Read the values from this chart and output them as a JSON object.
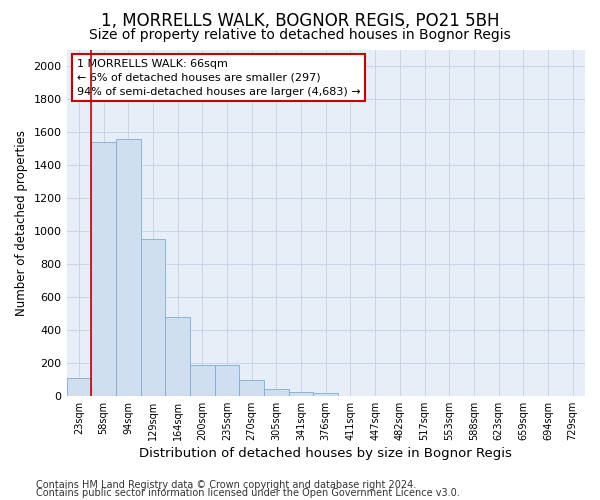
{
  "title_line1": "1, MORRELLS WALK, BOGNOR REGIS, PO21 5BH",
  "title_line2": "Size of property relative to detached houses in Bognor Regis",
  "xlabel": "Distribution of detached houses by size in Bognor Regis",
  "ylabel": "Number of detached properties",
  "footnote1": "Contains HM Land Registry data © Crown copyright and database right 2024.",
  "footnote2": "Contains public sector information licensed under the Open Government Licence v3.0.",
  "bar_labels": [
    "23sqm",
    "58sqm",
    "94sqm",
    "129sqm",
    "164sqm",
    "200sqm",
    "235sqm",
    "270sqm",
    "305sqm",
    "341sqm",
    "376sqm",
    "411sqm",
    "447sqm",
    "482sqm",
    "517sqm",
    "553sqm",
    "588sqm",
    "623sqm",
    "659sqm",
    "694sqm",
    "729sqm"
  ],
  "bar_values": [
    110,
    1540,
    1560,
    950,
    480,
    190,
    190,
    95,
    40,
    25,
    15,
    0,
    0,
    0,
    0,
    0,
    0,
    0,
    0,
    0,
    0
  ],
  "bar_color": "#d0dff0",
  "bar_edge_color": "#7aadd4",
  "highlight_bar_index": 1,
  "highlight_color": "#cc0000",
  "ylim": [
    0,
    2100
  ],
  "yticks": [
    0,
    200,
    400,
    600,
    800,
    1000,
    1200,
    1400,
    1600,
    1800,
    2000
  ],
  "annotation_text": "1 MORRELLS WALK: 66sqm\n← 6% of detached houses are smaller (297)\n94% of semi-detached houses are larger (4,683) →",
  "grid_color": "#c8d4e8",
  "background_color": "#e8eef8",
  "fig_background": "#ffffff",
  "title1_fontsize": 12,
  "title2_fontsize": 10,
  "xlabel_fontsize": 9.5,
  "ylabel_fontsize": 8.5,
  "annotation_fontsize": 8,
  "footnote_fontsize": 7
}
